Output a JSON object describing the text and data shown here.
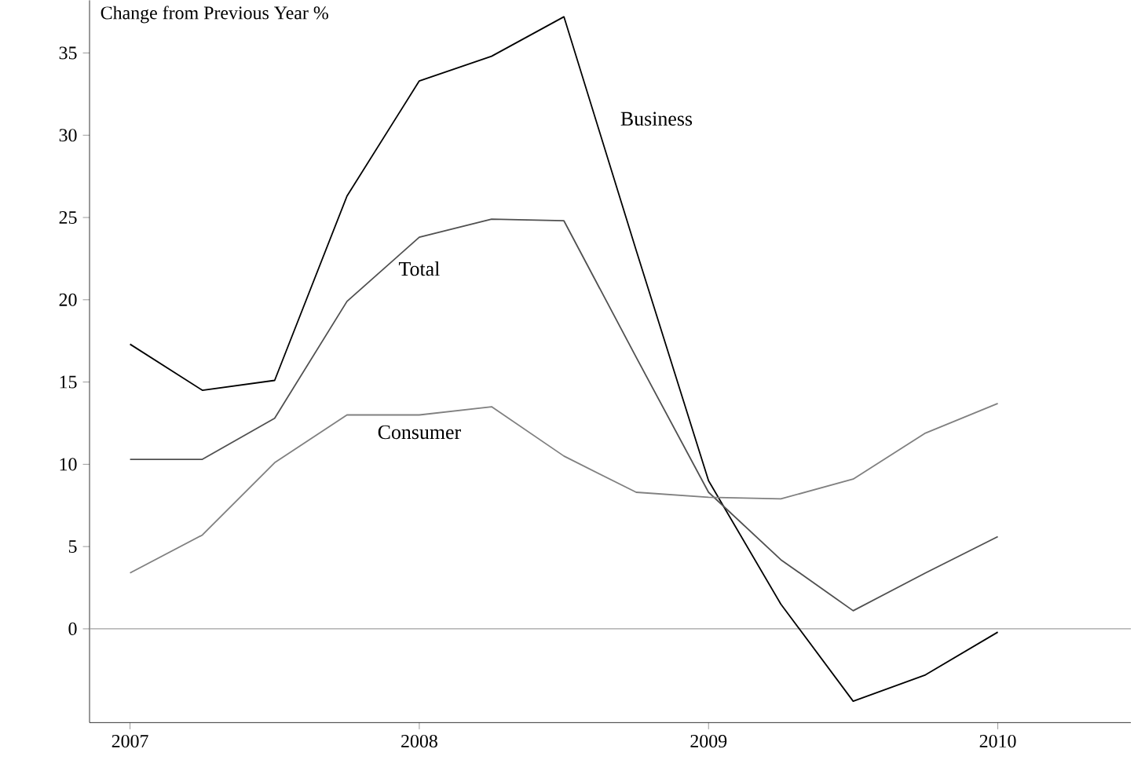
{
  "chart_data": {
    "type": "line",
    "ylabel": "Change from Previous Year %",
    "x": [
      2007,
      2007.25,
      2007.5,
      2007.75,
      2008,
      2008.25,
      2008.5,
      2008.75,
      2009,
      2009.25,
      2009.5,
      2009.75,
      2010
    ],
    "series": [
      {
        "name": "Business",
        "color": "#000000",
        "values": [
          17.3,
          14.5,
          15.1,
          26.3,
          33.3,
          34.8,
          37.2,
          23,
          9,
          1.5,
          -4.4,
          -2.8,
          -0.2
        ]
      },
      {
        "name": "Total",
        "color": "#505050",
        "values": [
          10.3,
          10.3,
          12.8,
          19.9,
          23.8,
          24.9,
          24.8,
          16.5,
          8.3,
          4.2,
          1.1,
          3.4,
          5.6
        ]
      },
      {
        "name": "Consumer",
        "color": "#808080",
        "values": [
          3.4,
          5.7,
          10.1,
          13,
          13,
          13.5,
          10.5,
          8.3,
          8,
          7.9,
          9.1,
          11.9,
          13.7
        ]
      }
    ],
    "xlim": [
      2006.86,
      2010.46
    ],
    "ylim": [
      -5.7,
      38.2
    ],
    "xticks": [
      2007,
      2008,
      2009,
      2010
    ],
    "yticks": [
      0,
      5,
      10,
      15,
      20,
      25,
      30,
      35
    ],
    "ref_lines": [
      {
        "axis": "y",
        "value": 0,
        "color": "#a0a0a0"
      }
    ],
    "grid": false,
    "legend": false,
    "marker": "none",
    "line_style": "solid"
  }
}
